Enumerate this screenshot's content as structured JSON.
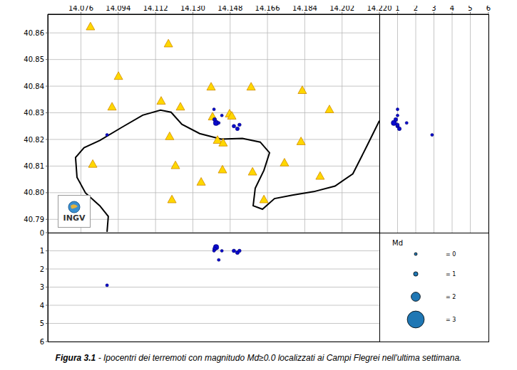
{
  "chart_data": {
    "type": "scatter",
    "panels": {
      "map": {
        "xlim": [
          14.06,
          14.22
        ],
        "ylim": [
          40.785,
          40.867
        ],
        "xticks": [
          14.076,
          14.094,
          14.112,
          {
            "value": 14.13,
            "label": "14.130"
          },
          14.148,
          14.166,
          14.184,
          14.202,
          {
            "value": 14.22,
            "label": "14.220"
          }
        ],
        "yticks": [
          40.79,
          {
            "value": 40.8,
            "label": "40.80"
          },
          40.81,
          40.82,
          40.83,
          40.84,
          40.85,
          40.86
        ],
        "grid": true
      },
      "depth_lat": {
        "xlim": [
          0,
          6
        ],
        "xticks": [
          1,
          2,
          3,
          4,
          5,
          6
        ],
        "grid": true
      },
      "depth_lon": {
        "ylim": [
          0,
          6
        ],
        "yticks": [
          0,
          1,
          2,
          3,
          4,
          5,
          6
        ],
        "grid": true
      }
    },
    "events": {
      "color": "#0a0acd",
      "marker": "circle",
      "lon": [
        14.0886,
        14.1412,
        14.1405,
        14.1402,
        14.1425,
        14.1498,
        14.1515,
        14.1525,
        14.144
      ],
      "lat": [
        40.8217,
        40.8262,
        40.8275,
        40.8313,
        40.8262,
        40.825,
        40.824,
        40.8255,
        40.829
      ],
      "depth": [
        2.9,
        0.8,
        0.9,
        1.0,
        1.5,
        1.0,
        1.1,
        1.0,
        1.0
      ],
      "md": [
        0.3,
        1.3,
        0.8,
        0.2,
        0.3,
        0.7,
        0.8,
        0.6,
        0.2
      ]
    },
    "stations": {
      "color": "#ffd700",
      "marker": "triangle",
      "lon": [
        14.0806,
        14.0941,
        14.1182,
        14.1147,
        14.124,
        14.1388,
        14.1581,
        14.1828,
        14.1959,
        14.091,
        14.1188,
        14.1395,
        14.1477,
        14.1488,
        14.1419,
        14.1446,
        14.0817,
        14.1216,
        14.1443,
        14.1588,
        14.1742,
        14.1822,
        14.1914,
        14.134,
        14.1199,
        14.1643
      ],
      "lat": [
        40.8624,
        40.8438,
        40.856,
        40.8345,
        40.8323,
        40.8398,
        40.8398,
        40.8385,
        40.8313,
        40.8323,
        40.8212,
        40.8286,
        40.8297,
        40.8289,
        40.8198,
        40.8188,
        40.8108,
        40.8103,
        40.8087,
        40.8079,
        40.8113,
        40.8193,
        40.8063,
        40.8041,
        40.7975,
        40.7975
      ]
    },
    "coastline": {
      "color": "#000000",
      "lon": [
        14.0886,
        14.0892,
        14.0851,
        14.0782,
        14.0741,
        14.0734,
        14.0775,
        14.0851,
        14.0954,
        14.1058,
        14.1144,
        14.1195,
        14.1247,
        14.1333,
        14.1436,
        14.1539,
        14.1625,
        14.167,
        14.1643,
        14.1601,
        14.1591,
        14.1636,
        14.1694,
        14.178,
        14.1883,
        14.1986,
        14.2072,
        14.2141,
        14.22
      ],
      "lat": [
        40.7853,
        40.7911,
        40.7951,
        40.7999,
        40.8058,
        40.8132,
        40.8169,
        40.8196,
        40.8244,
        40.8291,
        40.831,
        40.8302,
        40.8257,
        40.8222,
        40.8201,
        40.8204,
        40.819,
        40.815,
        40.8084,
        40.8017,
        40.7951,
        40.7938,
        40.7978,
        40.7991,
        40.8004,
        40.8025,
        40.8071,
        40.8177,
        40.827
      ]
    },
    "size_legend": {
      "title": "Md",
      "color": "#1f77b4",
      "entries": [
        {
          "value": 0,
          "label": "= 0"
        },
        {
          "value": 1,
          "label": "= 1"
        },
        {
          "value": 2,
          "label": "= 2"
        },
        {
          "value": 3,
          "label": "= 3"
        }
      ]
    },
    "logo": "INGV",
    "caption": {
      "label": "Figura 3.1",
      "text": "- Ipocentri dei terremoti con magnitudo Md≥0.0 localizzati ai Campi Flegrei nell'ultima settimana."
    }
  }
}
